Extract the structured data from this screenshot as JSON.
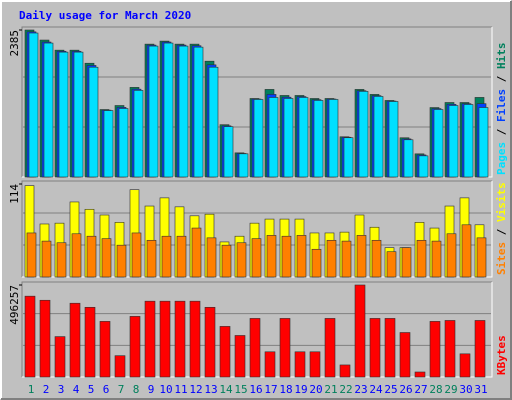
{
  "chart_data": [
    {
      "type": "bar",
      "title": "Daily usage for March 2020",
      "legend_separator": " / ",
      "ylim": [
        0,
        2385
      ],
      "yticks": [
        2385
      ],
      "series": [
        {
          "name": "Hits",
          "color": "#00805c",
          "values": [
            2385,
            2222,
            2058,
            2058,
            1846,
            1095,
            1160,
            1454,
            2156,
            2205,
            2156,
            2156,
            1879,
            849,
            392,
            1274,
            1421,
            1323,
            1323,
            1274,
            1274,
            653,
            1421,
            1340,
            1242,
            637,
            376,
            1127,
            1209,
            1209,
            1291
          ]
        },
        {
          "name": "Files",
          "color": "#0040ff",
          "values": [
            2355,
            2190,
            2040,
            2040,
            1810,
            1085,
            1130,
            1425,
            2140,
            2190,
            2140,
            2130,
            1820,
            830,
            382,
            1265,
            1340,
            1295,
            1305,
            1255,
            1265,
            645,
            1400,
            1320,
            1232,
            618,
            358,
            1110,
            1180,
            1190,
            1190
          ]
        },
        {
          "name": "Pages",
          "color": "#00e0ff",
          "values": [
            2336,
            2173,
            2026,
            2026,
            1781,
            1078,
            1111,
            1405,
            2124,
            2173,
            2124,
            2107,
            1781,
            817,
            376,
            1258,
            1290,
            1274,
            1290,
            1242,
            1258,
            637,
            1389,
            1307,
            1225,
            604,
            343,
            1095,
            1160,
            1176,
            1127
          ]
        }
      ]
    },
    {
      "type": "bar",
      "ylim": [
        0,
        114
      ],
      "yticks": [
        114
      ],
      "series": [
        {
          "name": "Visits",
          "color": "#ffff00",
          "values": [
            112,
            65,
            66,
            92,
            83,
            76,
            67,
            107,
            87,
            97,
            86,
            75,
            77,
            43,
            50,
            66,
            71,
            71,
            71,
            54,
            54,
            55,
            76,
            61,
            36,
            36,
            67,
            60,
            87,
            97,
            64
          ]
        },
        {
          "name": "Sites",
          "color": "#ff8000",
          "values": [
            54,
            44,
            42,
            53,
            50,
            47,
            39,
            54,
            45,
            50,
            50,
            60,
            48,
            39,
            42,
            47,
            51,
            50,
            51,
            34,
            45,
            44,
            51,
            45,
            31,
            36,
            45,
            44,
            53,
            64,
            48
          ]
        }
      ]
    },
    {
      "type": "bar",
      "ylim": [
        0,
        496257
      ],
      "yticks": [
        496257
      ],
      "categories": [
        "1",
        "2",
        "3",
        "4",
        "5",
        "6",
        "7",
        "8",
        "9",
        "10",
        "11",
        "12",
        "13",
        "14",
        "15",
        "16",
        "17",
        "18",
        "19",
        "20",
        "21",
        "22",
        "23",
        "24",
        "25",
        "26",
        "27",
        "28",
        "29",
        "30",
        "31"
      ],
      "highlight_categories": [
        0,
        6,
        7,
        13,
        14,
        20,
        21,
        27,
        28
      ],
      "highlight_color": "#00805c",
      "label_color": "#0000ff",
      "series": [
        {
          "name": "KBytes",
          "color": "#ff0000",
          "values": [
            436000,
            414000,
            218000,
            398000,
            376000,
            300000,
            115000,
            327000,
            409000,
            409000,
            409000,
            409000,
            376000,
            273000,
            224000,
            316000,
            136000,
            316000,
            136000,
            136000,
            316000,
            65000,
            496257,
            316000,
            316000,
            240000,
            27000,
            300000,
            305000,
            125000,
            305000
          ]
        }
      ]
    }
  ]
}
